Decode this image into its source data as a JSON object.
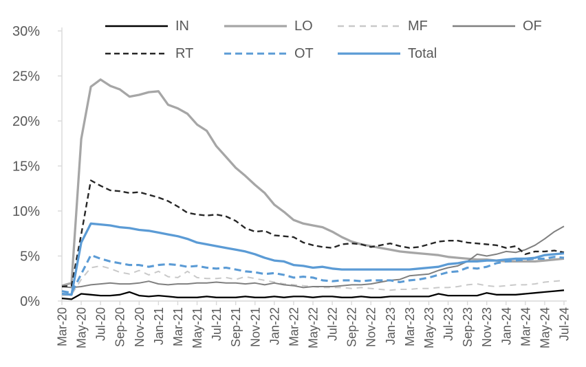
{
  "chart_data": {
    "type": "line",
    "title": "",
    "xlabel": "",
    "ylabel": "",
    "ylim": [
      0,
      30
    ],
    "ytick_step": 5,
    "ytick_labels": [
      "0%",
      "5%",
      "10%",
      "15%",
      "20%",
      "25%",
      "30%"
    ],
    "x_tick_every": 2,
    "x_tick_labels_shown": [
      "Mar-20",
      "May-20",
      "Jul-20",
      "Sep-20",
      "Nov-20",
      "Jan-21",
      "Mar-21",
      "May-21",
      "Jul-21",
      "Sep-21",
      "Nov-21",
      "Jan-22",
      "Mar-22",
      "May-22",
      "Jul-22",
      "Sep-22",
      "Nov-22",
      "Jan-23",
      "Mar-23",
      "May-23",
      "Jul-23",
      "Sep-23",
      "Nov-23",
      "Jan-24",
      "Mar-24",
      "May-24",
      "Jul-24"
    ],
    "x_categories": [
      "Mar-20",
      "Apr-20",
      "May-20",
      "Jun-20",
      "Jul-20",
      "Aug-20",
      "Sep-20",
      "Oct-20",
      "Nov-20",
      "Dec-20",
      "Jan-21",
      "Feb-21",
      "Mar-21",
      "Apr-21",
      "May-21",
      "Jun-21",
      "Jul-21",
      "Aug-21",
      "Sep-21",
      "Oct-21",
      "Nov-21",
      "Dec-21",
      "Jan-22",
      "Feb-22",
      "Mar-22",
      "Apr-22",
      "May-22",
      "Jun-22",
      "Jul-22",
      "Aug-22",
      "Sep-22",
      "Oct-22",
      "Nov-22",
      "Dec-22",
      "Jan-23",
      "Feb-23",
      "Mar-23",
      "Apr-23",
      "May-23",
      "Jun-23",
      "Jul-23",
      "Aug-23",
      "Sep-23",
      "Oct-23",
      "Nov-23",
      "Dec-23",
      "Jan-24",
      "Feb-24",
      "Mar-24",
      "Apr-24",
      "May-24",
      "Jun-24",
      "Jul-24"
    ],
    "grid": "off",
    "legend_position": "top",
    "axis_color": "#d9d9d9",
    "text_color": "#595959",
    "series": [
      {
        "name": "IN",
        "color": "#000000",
        "dash": "",
        "width": 2.3,
        "values": [
          0.3,
          0.2,
          0.8,
          0.7,
          0.6,
          0.6,
          0.7,
          1.0,
          0.6,
          0.5,
          0.6,
          0.5,
          0.4,
          0.4,
          0.4,
          0.5,
          0.4,
          0.4,
          0.4,
          0.5,
          0.4,
          0.4,
          0.5,
          0.4,
          0.5,
          0.5,
          0.4,
          0.5,
          0.5,
          0.4,
          0.4,
          0.5,
          0.4,
          0.4,
          0.5,
          0.5,
          0.5,
          0.5,
          0.5,
          0.8,
          0.6,
          0.6,
          0.6,
          0.6,
          0.9,
          0.7,
          0.7,
          0.7,
          0.8,
          0.9,
          1.0,
          1.1,
          1.2
        ]
      },
      {
        "name": "LO",
        "color": "#a6a6a6",
        "dash": "",
        "width": 3.3,
        "values": [
          1.7,
          2.0,
          18.0,
          23.8,
          24.6,
          23.9,
          23.5,
          22.7,
          22.9,
          23.2,
          23.3,
          21.8,
          21.4,
          20.8,
          19.6,
          18.9,
          17.2,
          16.0,
          14.8,
          13.9,
          12.9,
          12.0,
          10.7,
          9.9,
          9.0,
          8.6,
          8.4,
          8.2,
          7.7,
          7.1,
          6.6,
          6.3,
          6.1,
          5.9,
          5.7,
          5.5,
          5.4,
          5.3,
          5.2,
          5.1,
          4.9,
          4.8,
          4.7,
          4.6,
          4.6,
          4.5,
          4.4,
          4.4,
          4.4,
          4.4,
          4.5,
          4.6,
          4.7
        ]
      },
      {
        "name": "MF",
        "color": "#c9c9c9",
        "dash": "9,7",
        "width": 2,
        "values": [
          0.6,
          0.7,
          2.4,
          3.7,
          3.9,
          3.6,
          3.2,
          3.0,
          3.4,
          2.9,
          3.3,
          2.7,
          2.6,
          3.3,
          2.6,
          2.5,
          2.5,
          2.6,
          2.4,
          2.7,
          2.5,
          2.3,
          2.1,
          1.9,
          1.8,
          1.7,
          1.6,
          1.5,
          1.5,
          1.5,
          1.4,
          1.5,
          1.4,
          1.3,
          1.2,
          1.3,
          1.3,
          1.4,
          1.4,
          1.5,
          1.5,
          1.6,
          1.8,
          1.9,
          1.7,
          1.6,
          1.7,
          1.8,
          1.8,
          1.9,
          2.1,
          2.2,
          2.3
        ]
      },
      {
        "name": "OF",
        "color": "#7f7f7f",
        "dash": "",
        "width": 2,
        "values": [
          1.6,
          1.5,
          1.6,
          1.8,
          1.9,
          2.0,
          1.9,
          1.9,
          2.0,
          2.2,
          1.9,
          1.8,
          1.9,
          1.9,
          2.0,
          2.0,
          2.1,
          2.0,
          2.0,
          1.9,
          2.0,
          1.8,
          2.0,
          1.8,
          1.7,
          1.5,
          1.6,
          1.6,
          1.6,
          1.7,
          1.8,
          1.8,
          1.9,
          2.1,
          2.3,
          2.4,
          2.8,
          2.9,
          3.0,
          3.4,
          3.7,
          3.9,
          4.4,
          5.2,
          5.0,
          5.2,
          5.5,
          5.4,
          5.7,
          6.2,
          6.9,
          7.7,
          8.3
        ]
      },
      {
        "name": "RT",
        "color": "#262626",
        "dash": "8,5",
        "width": 2.4,
        "values": [
          1.6,
          1.7,
          7.4,
          13.4,
          12.8,
          12.3,
          12.2,
          12.0,
          12.1,
          11.8,
          11.5,
          11.1,
          10.5,
          9.8,
          9.6,
          9.5,
          9.6,
          9.4,
          8.9,
          8.1,
          7.7,
          7.8,
          7.3,
          7.2,
          7.1,
          6.5,
          6.2,
          6.0,
          5.9,
          6.3,
          6.4,
          6.3,
          6.0,
          6.2,
          6.4,
          6.1,
          5.9,
          6.0,
          6.3,
          6.6,
          6.7,
          6.7,
          6.5,
          6.4,
          6.3,
          6.2,
          5.9,
          6.1,
          5.2,
          5.5,
          5.5,
          5.6,
          5.4
        ]
      },
      {
        "name": "OT",
        "color": "#5b9bd5",
        "dash": "10,6",
        "width": 3.1,
        "values": [
          1.1,
          0.9,
          3.0,
          5.1,
          4.7,
          4.4,
          4.2,
          4.0,
          4.0,
          3.8,
          4.0,
          4.1,
          4.0,
          3.8,
          3.9,
          3.7,
          3.6,
          3.7,
          3.5,
          3.3,
          3.2,
          3.0,
          3.1,
          2.9,
          2.6,
          2.7,
          2.6,
          2.3,
          2.2,
          2.3,
          2.3,
          2.2,
          2.3,
          2.3,
          2.3,
          2.1,
          2.3,
          2.4,
          2.6,
          2.9,
          3.2,
          3.3,
          3.7,
          3.6,
          3.8,
          4.2,
          4.4,
          4.5,
          4.6,
          4.7,
          4.7,
          4.9,
          4.8
        ]
      },
      {
        "name": "Total",
        "color": "#5b9bd5",
        "dash": "",
        "width": 3.3,
        "values": [
          0.8,
          0.7,
          6.5,
          8.6,
          8.5,
          8.4,
          8.2,
          8.1,
          7.9,
          7.8,
          7.6,
          7.4,
          7.2,
          6.9,
          6.5,
          6.3,
          6.1,
          5.9,
          5.7,
          5.5,
          5.2,
          4.8,
          4.5,
          4.4,
          4.0,
          3.9,
          3.7,
          3.8,
          3.6,
          3.5,
          3.5,
          3.5,
          3.5,
          3.5,
          3.5,
          3.5,
          3.5,
          3.6,
          3.7,
          3.8,
          4.1,
          4.2,
          4.4,
          4.4,
          4.5,
          4.5,
          4.6,
          4.7,
          4.7,
          4.8,
          5.1,
          5.2,
          5.3
        ]
      }
    ]
  }
}
